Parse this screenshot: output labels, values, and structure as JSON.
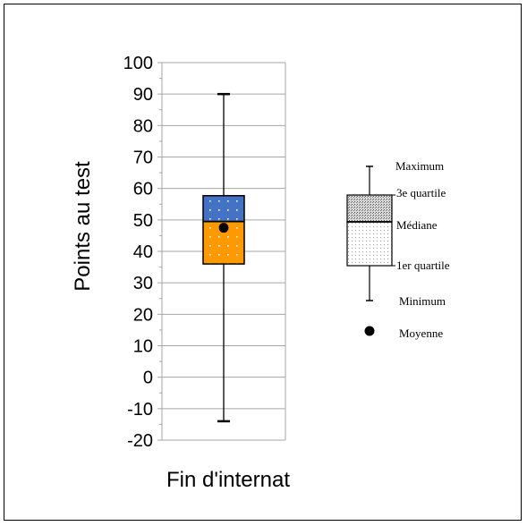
{
  "chart_data": {
    "type": "boxplot",
    "ylabel": "Points au test",
    "ylim": [
      -20,
      100
    ],
    "yticks": [
      100,
      90,
      80,
      70,
      60,
      50,
      40,
      30,
      20,
      10,
      0,
      -10,
      -20
    ],
    "grid": true,
    "categories": [
      "Fin d'internat"
    ],
    "boxes": [
      {
        "category": "Fin d'internat",
        "min": -14,
        "q1": 36,
        "median": 49.5,
        "q3": 57.7,
        "max": 90,
        "mean": 47.5
      }
    ],
    "colors": {
      "upper_box": "#4472c4",
      "lower_box": "#ff9900",
      "grid": "#a6a6a6",
      "mean_marker": "#000000"
    },
    "legend": {
      "position": "right",
      "labels": {
        "max": "Maximum",
        "q3": "3e quartile",
        "median": "Médiane",
        "q1": "1er quartile",
        "min": "Minimum",
        "mean": "Moyenne"
      }
    }
  }
}
